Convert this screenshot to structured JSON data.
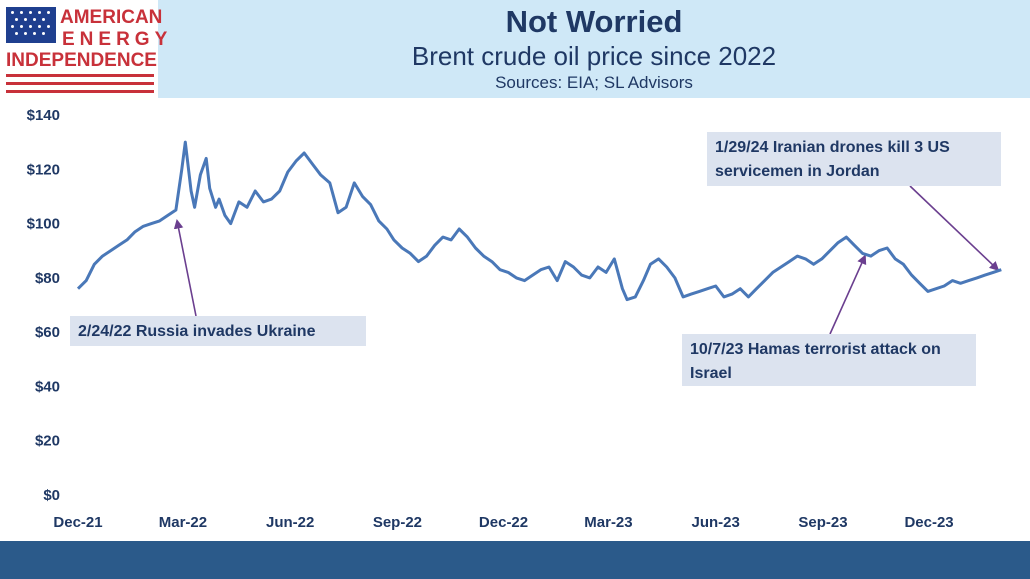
{
  "header": {
    "title": "Not Worried",
    "subtitle": "Brent crude oil price since 2022",
    "sources": "Sources: EIA; SL Advisors"
  },
  "logo": {
    "line1": "AMERICAN",
    "line2": "ENERGY",
    "line3": "INDEPENDENCE"
  },
  "colors": {
    "line": "#4a78b8",
    "arrow": "#6b3f8f",
    "header_bg": "#cfe8f7",
    "title": "#1f3864",
    "logo_red": "#c8313a",
    "footer": "#2b5a8a"
  },
  "chart_data": {
    "type": "line",
    "title": "Brent crude oil price since 2022",
    "xlabel": "",
    "ylabel": "",
    "xlim": [
      "2021-12-01",
      "2024-02-05"
    ],
    "ylim": [
      0,
      140
    ],
    "yticks": [
      0,
      20,
      40,
      60,
      80,
      100,
      120,
      140
    ],
    "ytick_labels": [
      "$0",
      "$20",
      "$40",
      "$60",
      "$80",
      "$100",
      "$120",
      "$140"
    ],
    "xticks": [
      "2021-12-01",
      "2022-03-01",
      "2022-06-01",
      "2022-09-01",
      "2022-12-01",
      "2023-03-01",
      "2023-06-01",
      "2023-09-01",
      "2023-12-01"
    ],
    "xtick_labels": [
      "Dec-21",
      "Mar-22",
      "Jun-22",
      "Sep-22",
      "Dec-22",
      "Mar-23",
      "Jun-23",
      "Sep-23",
      "Dec-23"
    ],
    "grid": false,
    "series": [
      {
        "x": [
          "2021-12-01",
          "2021-12-08",
          "2021-12-15",
          "2021-12-22",
          "2021-12-29",
          "2022-01-05",
          "2022-01-12",
          "2022-01-19",
          "2022-01-26",
          "2022-02-02",
          "2022-02-09",
          "2022-02-16",
          "2022-02-23",
          "2022-02-28",
          "2022-03-03",
          "2022-03-08",
          "2022-03-11",
          "2022-03-16",
          "2022-03-21",
          "2022-03-24",
          "2022-03-29",
          "2022-04-01",
          "2022-04-06",
          "2022-04-11",
          "2022-04-18",
          "2022-04-25",
          "2022-05-02",
          "2022-05-09",
          "2022-05-16",
          "2022-05-23",
          "2022-05-30",
          "2022-06-06",
          "2022-06-13",
          "2022-06-20",
          "2022-06-27",
          "2022-07-05",
          "2022-07-12",
          "2022-07-19",
          "2022-07-26",
          "2022-08-02",
          "2022-08-09",
          "2022-08-16",
          "2022-08-23",
          "2022-08-29",
          "2022-09-05",
          "2022-09-12",
          "2022-09-19",
          "2022-09-26",
          "2022-10-03",
          "2022-10-10",
          "2022-10-17",
          "2022-10-24",
          "2022-10-31",
          "2022-11-07",
          "2022-11-14",
          "2022-11-21",
          "2022-11-28",
          "2022-12-05",
          "2022-12-12",
          "2022-12-19",
          "2022-12-26",
          "2023-01-02",
          "2023-01-09",
          "2023-01-16",
          "2023-01-23",
          "2023-01-30",
          "2023-02-06",
          "2023-02-13",
          "2023-02-20",
          "2023-02-27",
          "2023-03-06",
          "2023-03-13",
          "2023-03-17",
          "2023-03-24",
          "2023-03-31",
          "2023-04-06",
          "2023-04-13",
          "2023-04-20",
          "2023-04-27",
          "2023-05-04",
          "2023-05-11",
          "2023-05-18",
          "2023-05-25",
          "2023-06-01",
          "2023-06-08",
          "2023-06-15",
          "2023-06-22",
          "2023-06-29",
          "2023-07-06",
          "2023-07-13",
          "2023-07-20",
          "2023-07-27",
          "2023-08-03",
          "2023-08-10",
          "2023-08-17",
          "2023-08-24",
          "2023-08-31",
          "2023-09-07",
          "2023-09-14",
          "2023-09-21",
          "2023-09-28",
          "2023-10-05",
          "2023-10-12",
          "2023-10-19",
          "2023-10-26",
          "2023-11-02",
          "2023-11-09",
          "2023-11-16",
          "2023-11-23",
          "2023-11-30",
          "2023-12-07",
          "2023-12-14",
          "2023-12-21",
          "2023-12-28",
          "2024-01-04",
          "2024-01-11",
          "2024-01-18",
          "2024-01-25",
          "2024-02-01"
        ],
        "y": [
          76,
          79,
          85,
          88,
          90,
          92,
          94,
          97,
          99,
          100,
          101,
          103,
          105,
          120,
          130,
          112,
          106,
          118,
          124,
          113,
          106,
          109,
          103,
          100,
          108,
          106,
          112,
          108,
          109,
          112,
          119,
          123,
          126,
          122,
          118,
          115,
          104,
          106,
          115,
          110,
          107,
          101,
          98,
          94,
          91,
          89,
          86,
          88,
          92,
          95,
          94,
          98,
          95,
          91,
          88,
          86,
          83,
          82,
          80,
          79,
          81,
          83,
          84,
          79,
          86,
          84,
          81,
          80,
          84,
          82,
          87,
          76,
          72,
          73,
          79,
          85,
          87,
          84,
          80,
          73,
          74,
          75,
          76,
          77,
          73,
          74,
          76,
          73,
          76,
          79,
          82,
          84,
          86,
          88,
          87,
          85,
          87,
          90,
          93,
          95,
          92,
          89,
          88,
          90,
          91,
          87,
          85,
          81,
          78,
          75,
          76,
          77,
          79,
          78,
          79,
          80,
          81,
          82,
          83
        ]
      }
    ],
    "annotations": [
      {
        "text": "2/24/22 Russia invades Ukraine",
        "x": "2022-02-24",
        "y": 101
      },
      {
        "text": "10/7/23 Hamas terrorist attack on Israel",
        "x": "2023-10-07",
        "y": 88
      },
      {
        "text": "1/29/24 Iranian drones kill 3 US servicemen in Jordan",
        "x": "2024-01-29",
        "y": 83
      }
    ]
  }
}
